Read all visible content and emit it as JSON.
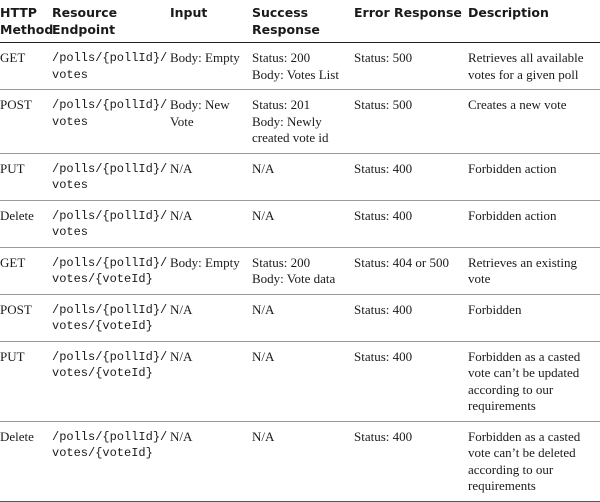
{
  "headers": {
    "method": "HTTP Method",
    "endpoint": "Resource Endpoint",
    "input": "Input",
    "success": "Success Response",
    "error": "Error Response",
    "description": "Description"
  },
  "rows": [
    {
      "method": "GET",
      "endpoint": "/polls/{pollId}/\nvotes",
      "input": "Body: Empty",
      "success": "Status: 200\nBody: Votes List",
      "error": "Status: 500",
      "description": "Retrieves all available\nvotes for a given poll"
    },
    {
      "method": "POST",
      "endpoint": "/polls/{pollId}/\nvotes",
      "input": "Body: New\nVote",
      "success": "Status: 201\nBody: Newly\ncreated vote id",
      "error": "Status: 500",
      "description": "Creates a new vote"
    },
    {
      "method": "PUT",
      "endpoint": "/polls/{pollId}/\nvotes",
      "input": "N/A",
      "success": "N/A",
      "error": "Status: 400",
      "description": "Forbidden action"
    },
    {
      "method": "Delete",
      "endpoint": "/polls/{pollId}/\nvotes",
      "input": "N/A",
      "success": "N/A",
      "error": "Status: 400",
      "description": "Forbidden action"
    },
    {
      "method": "GET",
      "endpoint": "/polls/{pollId}/\nvotes/{voteId}",
      "input": "Body: Empty",
      "success": "Status: 200\nBody: Vote data",
      "error": "Status: 404 or 500",
      "description": "Retrieves an existing\nvote"
    },
    {
      "method": "POST",
      "endpoint": "/polls/{pollId}/\nvotes/{voteId}",
      "input": "N/A",
      "success": "N/A",
      "error": "Status: 400",
      "description": "Forbidden"
    },
    {
      "method": "PUT",
      "endpoint": "/polls/{pollId}/\nvotes/{voteId}",
      "input": "N/A",
      "success": "N/A",
      "error": "Status: 400",
      "description": "Forbidden as a casted\nvote can’t be updated\naccording to our\nrequirements"
    },
    {
      "method": "Delete",
      "endpoint": "/polls/{pollId}/\nvotes/{voteId}",
      "input": "N/A",
      "success": "N/A",
      "error": "Status: 400",
      "description": "Forbidden as a casted\nvote can’t be deleted\naccording to our\nrequirements"
    }
  ]
}
